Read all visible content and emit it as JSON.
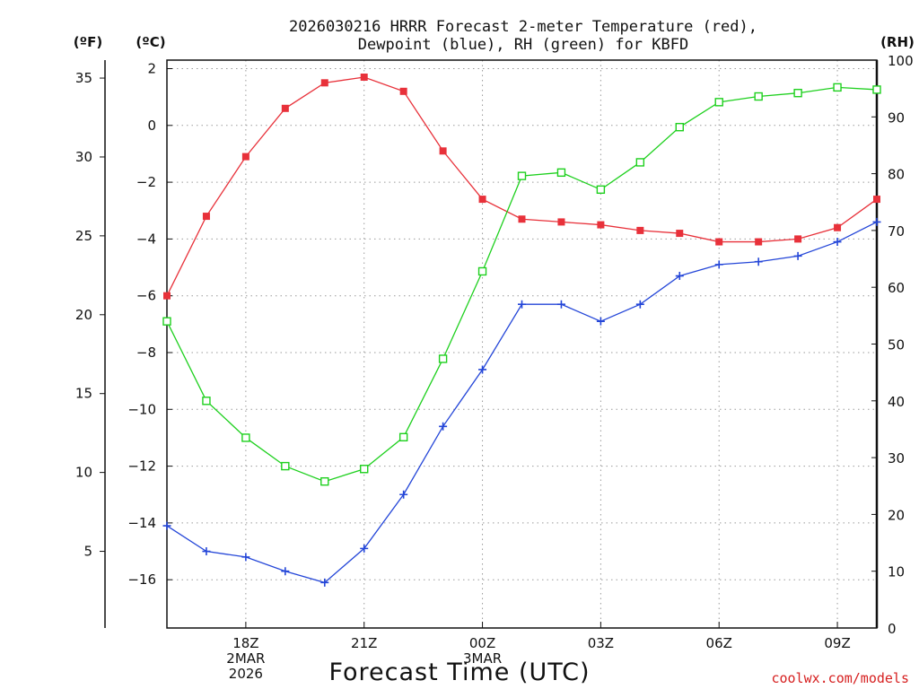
{
  "chart_data": {
    "type": "line",
    "title_lines": [
      "2026030216 HRRR Forecast 2-meter Temperature (red),",
      "Dewpoint (blue), RH (green) for KBFD"
    ],
    "xlabel": "Forecast Time (UTC)",
    "credit": "coolwx.com/models",
    "units": {
      "fahrenheit": "(ºF)",
      "celsius": "(ºC)",
      "rh": "(RH)"
    },
    "x_hours": [
      16,
      17,
      18,
      19,
      20,
      21,
      22,
      23,
      24,
      25,
      26,
      27,
      28,
      29,
      30,
      31,
      32,
      33,
      34
    ],
    "xlim": [
      16,
      34
    ],
    "x_ticks": [
      {
        "x": 18,
        "lines": [
          "18Z",
          "2MAR",
          "2026"
        ]
      },
      {
        "x": 21,
        "lines": [
          "21Z"
        ]
      },
      {
        "x": 24,
        "lines": [
          "00Z",
          "3MAR"
        ]
      },
      {
        "x": 27,
        "lines": [
          "03Z"
        ]
      },
      {
        "x": 30,
        "lines": [
          "06Z"
        ]
      },
      {
        "x": 33,
        "lines": [
          "09Z"
        ]
      }
    ],
    "celsius_axis": {
      "ylim": [
        -17.7,
        2.3
      ],
      "ticks": [
        2,
        0,
        -2,
        -4,
        -6,
        -8,
        -10,
        -12,
        -14,
        -16
      ],
      "labels": [
        "2",
        "0",
        "−2",
        "−4",
        "−6",
        "−8",
        "−10",
        "−12",
        "−14",
        "−16"
      ]
    },
    "fahrenheit_axis": {
      "ticks": [
        35,
        30,
        25,
        20,
        15,
        10,
        5
      ],
      "labels": [
        "35",
        "30",
        "25",
        "20",
        "15",
        "10",
        "5"
      ]
    },
    "rh_axis": {
      "ylim": [
        0,
        100
      ],
      "ticks": [
        100,
        90,
        80,
        70,
        60,
        50,
        40,
        30,
        20,
        10,
        0
      ],
      "labels": [
        "100",
        "90",
        "80",
        "70",
        "60",
        "50",
        "40",
        "30",
        "20",
        "10",
        "0"
      ]
    },
    "series": [
      {
        "name": "Temperature",
        "units": "C",
        "color": "#e8313a",
        "marker": "filled-square",
        "values": [
          -6.0,
          -3.2,
          -1.1,
          0.6,
          1.5,
          1.7,
          1.2,
          -0.9,
          -2.6,
          -3.3,
          -3.4,
          -3.5,
          -3.7,
          -3.8,
          -4.1,
          -4.1,
          -4.0,
          -3.6,
          -2.6
        ]
      },
      {
        "name": "Dewpoint",
        "units": "C",
        "color": "#2446d8",
        "marker": "plus",
        "values": [
          -14.1,
          -15.0,
          -15.2,
          -15.7,
          -16.1,
          -14.9,
          -13.0,
          -10.6,
          -8.6,
          -6.3,
          -6.3,
          -6.9,
          -6.3,
          -5.3,
          -4.9,
          -4.8,
          -4.6,
          -4.1,
          -3.4
        ]
      },
      {
        "name": "RH",
        "units": "%",
        "color": "#1ed01e",
        "marker": "open-square",
        "values": [
          54,
          40,
          33.5,
          28.5,
          25.8,
          28,
          33.6,
          47.4,
          62.8,
          79.6,
          80.2,
          77.2,
          82,
          88.2,
          92.6,
          93.6,
          94.2,
          95.2,
          94.8
        ]
      }
    ]
  }
}
